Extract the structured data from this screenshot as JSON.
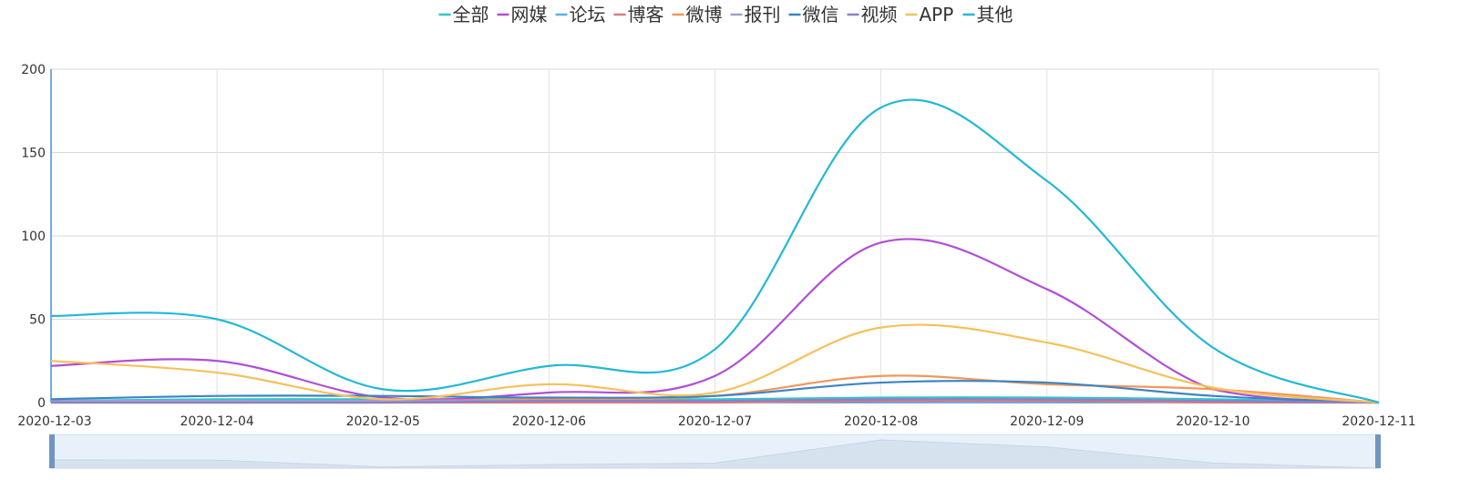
{
  "chart_data": {
    "type": "line",
    "smooth": true,
    "legend_position": "top-center",
    "grid": true,
    "title": "",
    "xlabel": "",
    "ylabel": "",
    "ylim": [
      0,
      200
    ],
    "yticks": [
      "0",
      "50",
      "100",
      "150",
      "200"
    ],
    "categories": [
      "2020-12-03",
      "2020-12-04",
      "2020-12-05",
      "2020-12-06",
      "2020-12-07",
      "2020-12-08",
      "2020-12-09",
      "2020-12-10",
      "2020-12-11"
    ],
    "series": [
      {
        "name": "全部",
        "color": "#2ec7c9",
        "values": [
          1,
          2,
          2,
          2,
          2,
          3,
          3,
          2,
          0
        ]
      },
      {
        "name": "网媒",
        "color": "#b14ed8",
        "values": [
          22,
          25,
          3,
          6,
          16,
          96,
          68,
          8,
          0
        ]
      },
      {
        "name": "论坛",
        "color": "#5ab1ef",
        "values": [
          1,
          1,
          1,
          1,
          1,
          2,
          2,
          1,
          0
        ]
      },
      {
        "name": "博客",
        "color": "#d87a80",
        "values": [
          0,
          0,
          0,
          0,
          0,
          1,
          1,
          0,
          0
        ]
      },
      {
        "name": "微博",
        "color": "#f2975a",
        "values": [
          1,
          1,
          1,
          2,
          4,
          16,
          11,
          8,
          0
        ]
      },
      {
        "name": "报刊",
        "color": "#95a2d0",
        "values": [
          1,
          1,
          1,
          1,
          1,
          2,
          2,
          1,
          0
        ]
      },
      {
        "name": "微信",
        "color": "#3b84c5",
        "values": [
          2,
          4,
          4,
          3,
          4,
          12,
          12,
          4,
          0
        ]
      },
      {
        "name": "视频",
        "color": "#8d7fc8",
        "values": [
          0,
          0,
          0,
          1,
          1,
          2,
          2,
          1,
          0
        ]
      },
      {
        "name": "APP",
        "color": "#f6c15b",
        "values": [
          25,
          18,
          2,
          11,
          6,
          45,
          36,
          9,
          0
        ]
      },
      {
        "name": "其他",
        "color": "#22b8d5",
        "values": [
          52,
          50,
          8,
          22,
          32,
          177,
          133,
          33,
          0
        ]
      }
    ]
  }
}
